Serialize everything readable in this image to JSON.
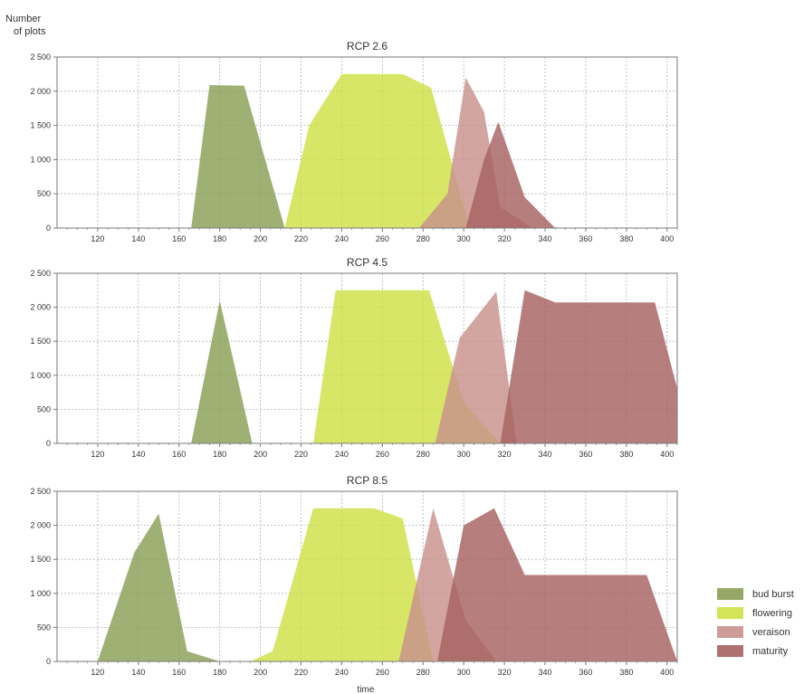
{
  "figure": {
    "ylabel_line1": "Number",
    "ylabel_line2": "of plots",
    "xlabel": "time"
  },
  "colors": {
    "bud burst": "#8a9f55",
    "flowering": "#cfe046",
    "veraison": "#c8918c",
    "maturity": "#a6625f",
    "grid": "#b0b0b0",
    "axis": "#7a7a7a"
  },
  "legend": {
    "position": "bottom-right",
    "items": [
      {
        "label": "bud burst",
        "color": "#8a9f55"
      },
      {
        "label": "flowering",
        "color": "#cfe046"
      },
      {
        "label": "veraison",
        "color": "#c8918c"
      },
      {
        "label": "maturity",
        "color": "#a6625f"
      }
    ]
  },
  "chart_data": [
    {
      "type": "area",
      "title": "RCP 2.6",
      "xlim": [
        100,
        405
      ],
      "ylim": [
        0,
        2500
      ],
      "xticks": [
        "120",
        "140",
        "160",
        "180",
        "200",
        "220",
        "240",
        "260",
        "280",
        "300",
        "320",
        "340",
        "360",
        "380",
        "400"
      ],
      "yticks": [
        "0",
        "500",
        "1 000",
        "1 500",
        "2 000",
        "2 500"
      ],
      "grid": true,
      "series": [
        {
          "name": "bud burst",
          "points": [
            [
              166,
              0
            ],
            [
              175,
              2090
            ],
            [
              192,
              2080
            ],
            [
              212,
              0
            ]
          ]
        },
        {
          "name": "flowering",
          "points": [
            [
              212,
              0
            ],
            [
              224,
              1500
            ],
            [
              240,
              2250
            ],
            [
              270,
              2250
            ],
            [
              284,
              2050
            ],
            [
              303,
              0
            ]
          ]
        },
        {
          "name": "veraison",
          "points": [
            [
              278,
              0
            ],
            [
              292,
              500
            ],
            [
              301,
              2200
            ],
            [
              310,
              1700
            ],
            [
              318,
              300
            ],
            [
              334,
              0
            ]
          ]
        },
        {
          "name": "maturity",
          "points": [
            [
              301,
              0
            ],
            [
              310,
              1000
            ],
            [
              317,
              1550
            ],
            [
              330,
              450
            ],
            [
              345,
              0
            ]
          ]
        }
      ]
    },
    {
      "type": "area",
      "title": "RCP 4.5",
      "xlim": [
        100,
        405
      ],
      "ylim": [
        0,
        2500
      ],
      "xticks": [
        "120",
        "140",
        "160",
        "180",
        "200",
        "220",
        "240",
        "260",
        "280",
        "300",
        "320",
        "340",
        "360",
        "380",
        "400"
      ],
      "yticks": [
        "0",
        "500",
        "1 000",
        "1 500",
        "2 000",
        "2 500"
      ],
      "grid": true,
      "series": [
        {
          "name": "bud burst",
          "points": [
            [
              166,
              0
            ],
            [
              180,
              2100
            ],
            [
              196,
              0
            ]
          ]
        },
        {
          "name": "flowering",
          "points": [
            [
              226,
              0
            ],
            [
              237,
              2250
            ],
            [
              283,
              2250
            ],
            [
              300,
              600
            ],
            [
              318,
              0
            ]
          ]
        },
        {
          "name": "veraison",
          "points": [
            [
              286,
              0
            ],
            [
              298,
              1550
            ],
            [
              316,
              2230
            ],
            [
              326,
              0
            ]
          ]
        },
        {
          "name": "maturity",
          "points": [
            [
              318,
              0
            ],
            [
              330,
              2250
            ],
            [
              345,
              2070
            ],
            [
              394,
              2070
            ],
            [
              412,
              0
            ]
          ]
        }
      ]
    },
    {
      "type": "area",
      "title": "RCP 8.5",
      "xlim": [
        100,
        405
      ],
      "ylim": [
        0,
        2500
      ],
      "xticks": [
        "120",
        "140",
        "160",
        "180",
        "200",
        "220",
        "240",
        "260",
        "280",
        "300",
        "320",
        "340",
        "360",
        "380",
        "400"
      ],
      "yticks": [
        "0",
        "500",
        "1 000",
        "1 500",
        "2 000",
        "2 500"
      ],
      "grid": true,
      "series": [
        {
          "name": "bud burst",
          "points": [
            [
              120,
              0
            ],
            [
              138,
              1600
            ],
            [
              150,
              2170
            ],
            [
              164,
              150
            ],
            [
              180,
              0
            ]
          ]
        },
        {
          "name": "flowering",
          "points": [
            [
              195,
              0
            ],
            [
              206,
              150
            ],
            [
              226,
              2250
            ],
            [
              256,
              2250
            ],
            [
              270,
              2100
            ],
            [
              285,
              0
            ]
          ]
        },
        {
          "name": "veraison",
          "points": [
            [
              268,
              0
            ],
            [
              285,
              2250
            ],
            [
              301,
              600
            ],
            [
              316,
              0
            ]
          ]
        },
        {
          "name": "maturity",
          "points": [
            [
              287,
              0
            ],
            [
              300,
              2000
            ],
            [
              315,
              2250
            ],
            [
              330,
              1270
            ],
            [
              390,
              1270
            ],
            [
              405,
              0
            ]
          ]
        }
      ]
    }
  ]
}
